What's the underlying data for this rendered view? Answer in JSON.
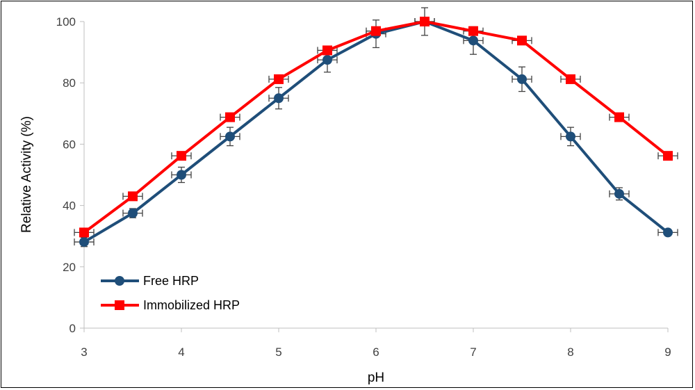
{
  "chart_data": {
    "type": "line",
    "xlabel": "pH",
    "ylabel": "Relative Activity (%)",
    "xlim": [
      3,
      9
    ],
    "ylim": [
      0,
      100
    ],
    "xticks": [
      3,
      4,
      5,
      6,
      7,
      8,
      9
    ],
    "yticks": [
      0,
      20,
      40,
      60,
      80,
      100
    ],
    "grid": false,
    "legend_position": "bottom-left",
    "x": [
      3,
      3.5,
      4,
      4.5,
      5,
      5.5,
      6,
      6.5,
      7,
      7.5,
      8,
      8.5,
      9
    ],
    "x_error": 0.1,
    "series": [
      {
        "name": "Free HRP",
        "color": "#1f4e79",
        "marker": "circle",
        "values": [
          28.1,
          37.5,
          50,
          62.5,
          75,
          87.5,
          96,
          100,
          93.8,
          81.2,
          62.5,
          43.8,
          31.2
        ],
        "errors": [
          1.5,
          1.5,
          2.5,
          3,
          3.5,
          4,
          4.5,
          4.5,
          4.5,
          4,
          3,
          2,
          1
        ]
      },
      {
        "name": "Immobilized HRP",
        "color": "#ff0000",
        "marker": "square",
        "values": [
          31.2,
          43,
          56.2,
          68.8,
          81.2,
          90.6,
          96.9,
          100,
          96.9,
          93.8,
          81.2,
          68.8,
          56.2
        ],
        "errors": [
          0,
          0,
          0,
          0,
          0,
          0,
          0,
          0,
          0,
          0,
          0,
          0,
          0
        ]
      }
    ]
  }
}
